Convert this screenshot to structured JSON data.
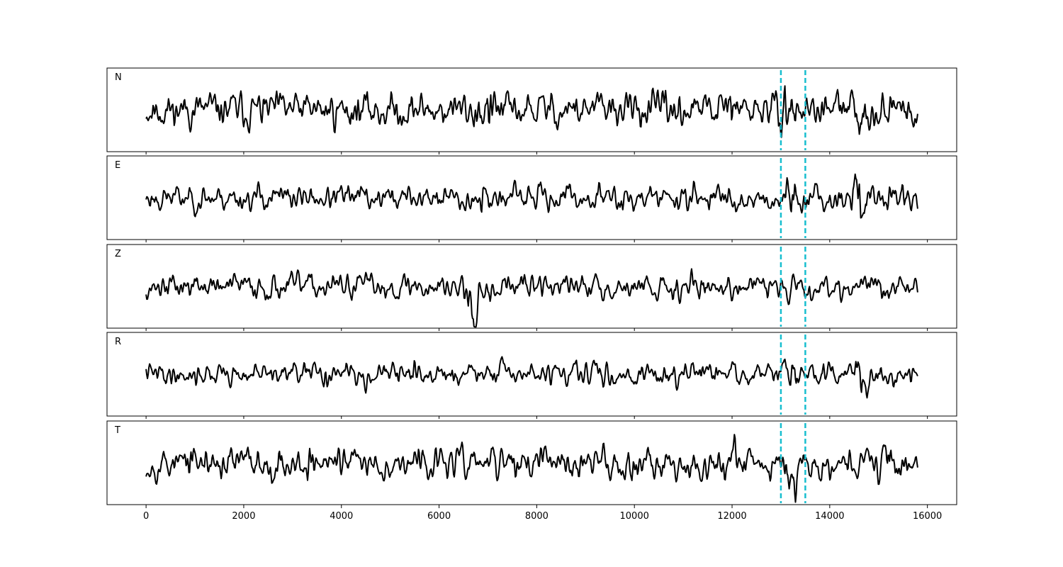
{
  "chart_data": {
    "type": "line",
    "panels": [
      {
        "name": "N",
        "amplitude": 0.55,
        "seed": 11,
        "events": [
          {
            "x": 6700,
            "amp": 0.3
          },
          {
            "x": 7000,
            "amp": 0.35
          },
          {
            "x": 12000,
            "amp": 0.3
          },
          {
            "x": 13150,
            "amp": 0.6
          },
          {
            "x": 14600,
            "amp": 0.35
          }
        ]
      },
      {
        "name": "E",
        "amplitude": 0.45,
        "seed": 23,
        "events": [
          {
            "x": 6850,
            "amp": 0.25
          },
          {
            "x": 13200,
            "amp": 0.7
          },
          {
            "x": 14550,
            "amp": 0.6
          },
          {
            "x": 14650,
            "amp": 0.9
          }
        ]
      },
      {
        "name": "Z",
        "amplitude": 0.45,
        "seed": 37,
        "events": [
          {
            "x": 6600,
            "amp": 1.0
          },
          {
            "x": 6750,
            "amp": 0.9
          },
          {
            "x": 10850,
            "amp": 0.35
          }
        ]
      },
      {
        "name": "R",
        "amplitude": 0.45,
        "seed": 41,
        "events": [
          {
            "x": 13250,
            "amp": 0.7
          },
          {
            "x": 14650,
            "amp": 0.95
          },
          {
            "x": 15200,
            "amp": 0.4
          }
        ]
      },
      {
        "name": "T",
        "amplitude": 0.55,
        "seed": 53,
        "events": [
          {
            "x": 3400,
            "amp": 0.3
          },
          {
            "x": 12000,
            "amp": 0.35
          },
          {
            "x": 13200,
            "amp": 0.85
          },
          {
            "x": 15200,
            "amp": 0.4
          }
        ]
      }
    ],
    "x_range": [
      0,
      15800
    ],
    "xlim": [
      -800,
      16600
    ],
    "x_ticks": [
      0,
      2000,
      4000,
      6000,
      8000,
      10000,
      12000,
      14000,
      16000
    ],
    "markers": [
      13000,
      13500
    ],
    "marker_color": "#17becf",
    "trace_color": "#000000",
    "grid": false
  }
}
